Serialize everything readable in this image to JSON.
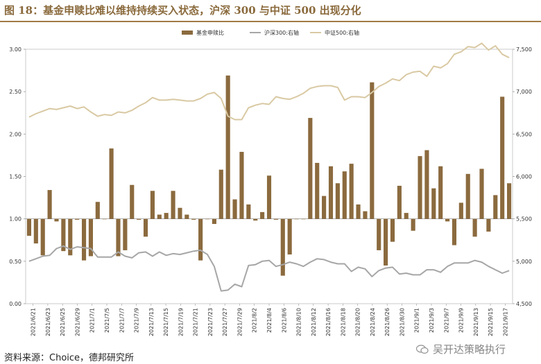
{
  "header": {
    "title": "图 18：基金申赎比难以维持持续买入状态，沪深 300 与中证 500 出现分化"
  },
  "footer": {
    "source": "资料来源：Choice，德邦研究所",
    "watermark": "吴开达策略执行"
  },
  "colors": {
    "accent": "#8a6a3c",
    "bar": "#8b6a3e",
    "hs300": "#a6a6a6",
    "zz500": "#d9c9a3"
  },
  "chart_data": {
    "type": "bar",
    "legend_position": "top-center",
    "grid": false,
    "x_tick_labels": [
      "2021/6/21",
      "2021/6/23",
      "2021/6/25",
      "2021/6/29",
      "2021/7/1",
      "2021/7/5",
      "2021/7/7",
      "2021/7/9",
      "2021/7/13",
      "2021/7/15",
      "2021/7/19",
      "2021/7/21",
      "2021/7/23",
      "2021/7/27",
      "2021/7/29",
      "2021/8/2",
      "2021/8/4",
      "2021/8/6",
      "2021/8/10",
      "2021/8/12",
      "2021/8/16",
      "2021/8/18",
      "2021/8/20",
      "2021/8/24",
      "2021/8/26",
      "2021/8/30",
      "2021/9/1",
      "2021/9/3",
      "2021/9/7",
      "2021/9/9",
      "2021/9/13",
      "2021/9/15",
      "2021/9/17"
    ],
    "y_left": {
      "range": [
        0.0,
        3.0
      ],
      "ticks": [
        "0.00",
        "0.50",
        "1.00",
        "1.50",
        "2.00",
        "2.50",
        "3.00"
      ],
      "baseline": 1.0
    },
    "y_right": {
      "range": [
        4500,
        7500
      ],
      "ticks": [
        "4,500",
        "5,000",
        "5,500",
        "6,000",
        "6,500",
        "7,000",
        "7,500"
      ]
    },
    "series": [
      {
        "name": "基金申赎比",
        "type": "bar",
        "axis": "left",
        "values": [
          0.8,
          0.71,
          0.57,
          1.34,
          0.97,
          0.62,
          0.57,
          0.99,
          0.51,
          0.56,
          1.2,
          1.0,
          1.83,
          0.56,
          0.63,
          1.4,
          0.99,
          0.79,
          1.33,
          1.05,
          1.07,
          1.33,
          1.13,
          1.05,
          0.99,
          0.51,
          1.0,
          0.94,
          1.58,
          2.69,
          1.23,
          1.79,
          1.17,
          0.98,
          1.08,
          1.51,
          0.99,
          0.33,
          0.58,
          1.0,
          1.0,
          2.19,
          1.66,
          1.27,
          1.62,
          1.42,
          1.56,
          1.65,
          1.17,
          1.09,
          2.61,
          0.63,
          0.45,
          0.73,
          1.39,
          1.07,
          0.86,
          1.74,
          1.81,
          1.36,
          1.62,
          0.97,
          0.69,
          1.19,
          1.53,
          0.79,
          1.59,
          0.85,
          1.28,
          2.44,
          1.42
        ]
      },
      {
        "name": "沪深300:右轴",
        "type": "line",
        "axis": "right",
        "values": [
          5000,
          5030,
          5060,
          5070,
          5150,
          5180,
          5140,
          5170,
          5160,
          5150,
          5050,
          5050,
          5050,
          5110,
          5060,
          5040,
          5100,
          5110,
          5060,
          5110,
          5070,
          5090,
          5080,
          5100,
          5120,
          5130,
          5080,
          4940,
          4650,
          4660,
          4730,
          4700,
          4950,
          4960,
          5000,
          5010,
          4940,
          4960,
          4990,
          4970,
          4940,
          4990,
          5030,
          5020,
          4990,
          4970,
          4970,
          4880,
          4930,
          4910,
          4820,
          4890,
          4920,
          4930,
          4850,
          4860,
          4840,
          4840,
          4900,
          4900,
          4870,
          4940,
          4980,
          4980,
          4980,
          5010,
          4990,
          4940,
          4900,
          4860,
          4890
        ]
      },
      {
        "name": "中证500:右轴",
        "type": "line",
        "axis": "right",
        "values": [
          6700,
          6740,
          6770,
          6800,
          6790,
          6810,
          6830,
          6800,
          6820,
          6760,
          6710,
          6730,
          6720,
          6760,
          6750,
          6780,
          6830,
          6870,
          6930,
          6900,
          6900,
          6910,
          6900,
          6890,
          6890,
          6920,
          6970,
          6990,
          6920,
          6710,
          6670,
          6670,
          6810,
          6840,
          6860,
          6850,
          6940,
          6920,
          6910,
          6940,
          6980,
          7040,
          7060,
          7070,
          7070,
          7050,
          6900,
          6940,
          6940,
          6930,
          6990,
          7060,
          7100,
          7150,
          7130,
          7200,
          7230,
          7240,
          7180,
          7300,
          7280,
          7330,
          7440,
          7470,
          7530,
          7520,
          7570,
          7490,
          7540,
          7440,
          7400
        ]
      }
    ]
  }
}
